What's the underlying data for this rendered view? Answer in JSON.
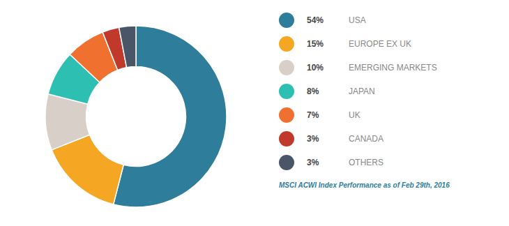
{
  "chart_data": {
    "type": "pie",
    "categories": [
      "USA",
      "EUROPE EX UK",
      "EMERGING MARKETS",
      "JAPAN",
      "UK",
      "CANADA",
      "OTHERS"
    ],
    "values": [
      54,
      15,
      10,
      8,
      7,
      3,
      3
    ],
    "value_labels": [
      "54%",
      "15%",
      "10%",
      "8%",
      "7%",
      "3%",
      "3%"
    ],
    "colors": [
      "#2e7d9b",
      "#f5a623",
      "#d8d0c8",
      "#2ebfb3",
      "#f07030",
      "#c0392b",
      "#4a5568"
    ],
    "subtitle": "MSCI ACWI Index Performance as of Feb 29th, 2016",
    "legend": "right"
  }
}
